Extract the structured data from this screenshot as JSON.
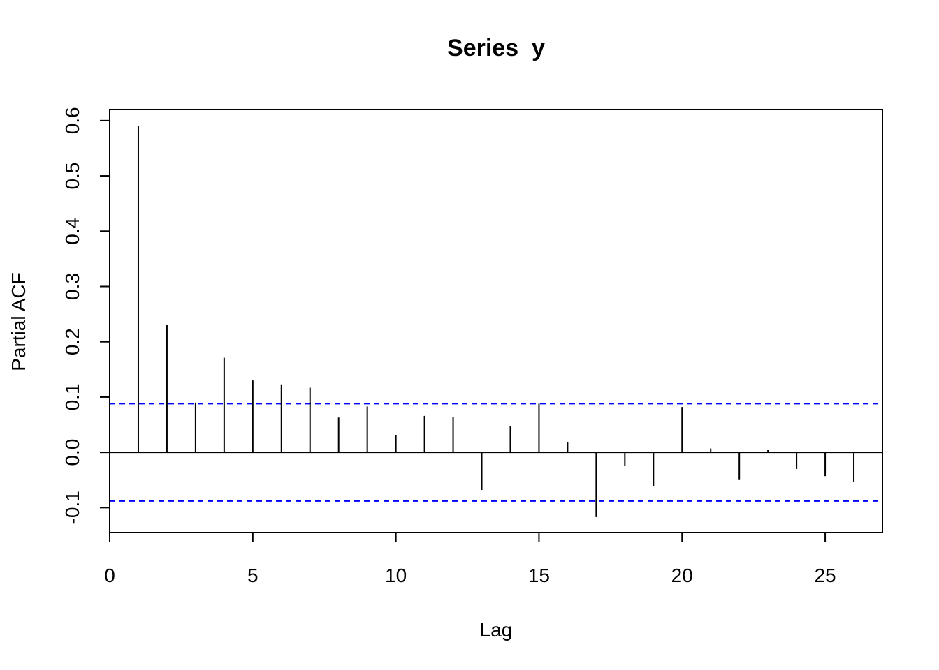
{
  "chart_data": {
    "type": "bar",
    "title": "Series  y",
    "xlabel": "Lag",
    "ylabel": "Partial ACF",
    "xlim": [
      0,
      27
    ],
    "ylim": [
      -0.145,
      0.62
    ],
    "x_ticks": [
      0,
      5,
      10,
      15,
      20,
      25
    ],
    "x_tick_labels": [
      "0",
      "5",
      "10",
      "15",
      "20",
      "25"
    ],
    "y_ticks": [
      -0.1,
      0.0,
      0.1,
      0.2,
      0.3,
      0.4,
      0.5,
      0.6
    ],
    "y_tick_labels": [
      "-0.1",
      "0.0",
      "0.1",
      "0.2",
      "0.3",
      "0.4",
      "0.5",
      "0.6"
    ],
    "grid": false,
    "confidence_bound": 0.088,
    "confidence_color": "#0000ff",
    "bar_color": "#000000",
    "x": [
      1,
      2,
      3,
      4,
      5,
      6,
      7,
      8,
      9,
      10,
      11,
      12,
      13,
      14,
      15,
      16,
      17,
      18,
      19,
      20,
      21,
      22,
      23,
      24,
      25,
      26
    ],
    "values": [
      0.59,
      0.231,
      0.09,
      0.171,
      0.13,
      0.123,
      0.117,
      0.063,
      0.083,
      0.031,
      0.066,
      0.064,
      -0.068,
      0.048,
      0.088,
      0.019,
      -0.117,
      -0.024,
      -0.061,
      0.082,
      0.007,
      -0.05,
      0.004,
      -0.03,
      -0.043,
      -0.054
    ]
  }
}
